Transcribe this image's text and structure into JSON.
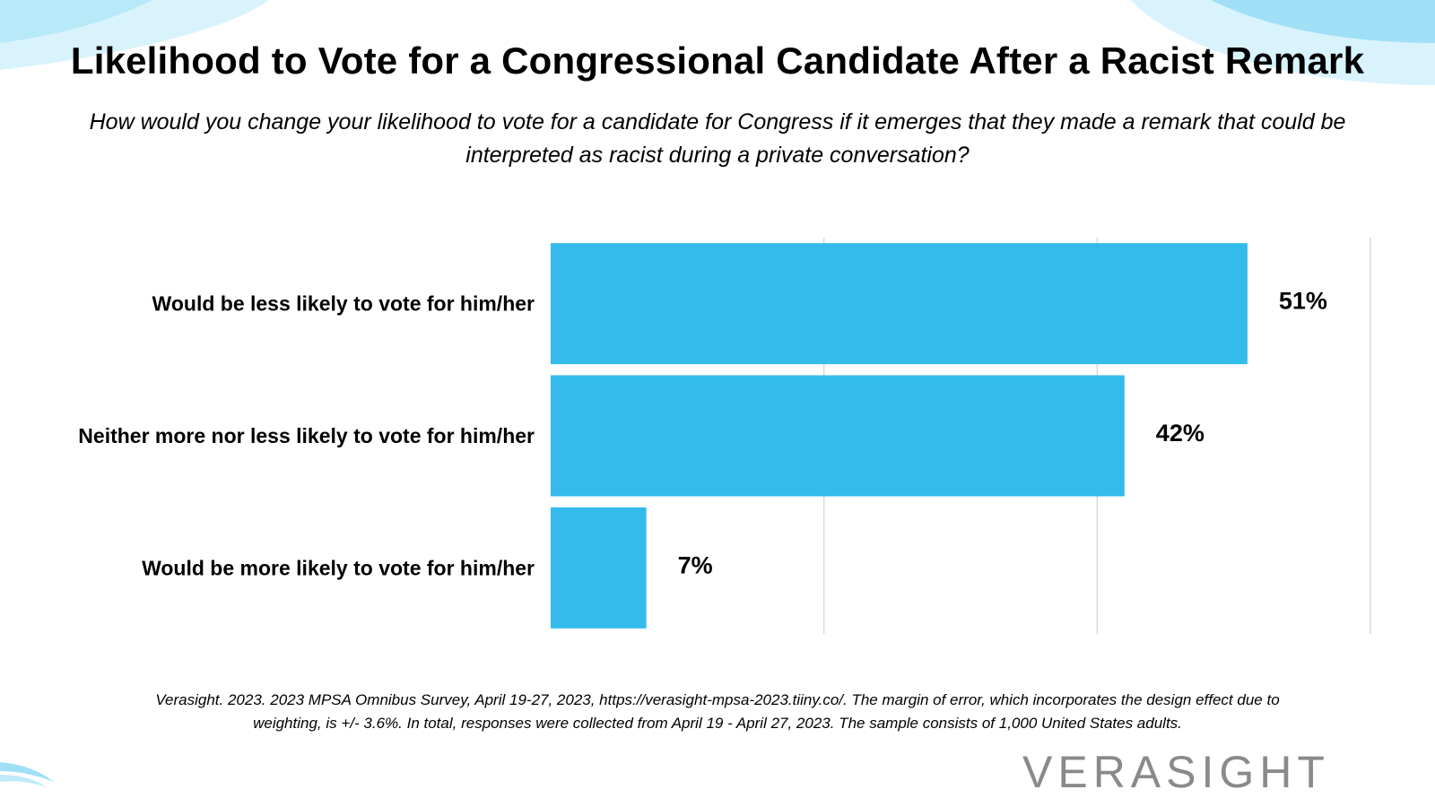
{
  "title": "Likelihood to Vote for a Congressional Candidate After a Racist Remark",
  "subtitle": "How would you change your likelihood to vote for a candidate for Congress if it emerges that they made a remark that could be interpreted as racist during a private conversation?",
  "footnote": "Verasight. 2023. 2023 MPSA Omnibus Survey, April 19-27, 2023, https://verasight-mpsa-2023.tiiny.co/. The margin of error, which incorporates the design effect due to weighting, is +/- 3.6%.  In total, responses were collected from April 19 - April 27, 2023. The sample consists of 1,000 United States adults.",
  "logo_text": "VERASIGHT",
  "colors": {
    "bar": "#33bbeb",
    "grid": "#d9d9d9",
    "deco": "#cdeffb"
  },
  "chart_data": {
    "type": "bar",
    "orientation": "horizontal",
    "categories": [
      "Would be less likely to vote for him/her",
      "Neither more nor less likely to vote for him/her",
      "Would be more likely to vote for him/her"
    ],
    "values": [
      51,
      42,
      7
    ],
    "value_labels": [
      "51%",
      "42%",
      "7%"
    ],
    "xlim": [
      0,
      60
    ],
    "grid": true,
    "legend": "none"
  }
}
